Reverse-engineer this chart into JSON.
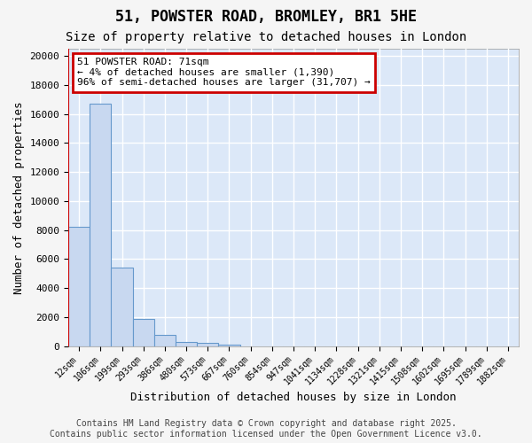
{
  "title": "51, POWSTER ROAD, BROMLEY, BR1 5HE",
  "subtitle": "Size of property relative to detached houses in London",
  "xlabel": "Distribution of detached houses by size in London",
  "ylabel": "Number of detached properties",
  "bar_color": "#c8d8f0",
  "bar_edge_color": "#6699cc",
  "background_color": "#dce8f8",
  "fig_background_color": "#f5f5f5",
  "grid_color": "#ffffff",
  "categories": [
    "12sqm",
    "106sqm",
    "199sqm",
    "293sqm",
    "386sqm",
    "480sqm",
    "573sqm",
    "667sqm",
    "760sqm",
    "854sqm",
    "947sqm",
    "1041sqm",
    "1134sqm",
    "1228sqm",
    "1321sqm",
    "1415sqm",
    "1508sqm",
    "1602sqm",
    "1695sqm",
    "1789sqm",
    "1882sqm"
  ],
  "values": [
    8200,
    16700,
    5400,
    1850,
    750,
    300,
    200,
    100,
    0,
    0,
    0,
    0,
    0,
    0,
    0,
    0,
    0,
    0,
    0,
    0,
    0
  ],
  "ylim": [
    0,
    20500
  ],
  "yticks": [
    0,
    2000,
    4000,
    6000,
    8000,
    10000,
    12000,
    14000,
    16000,
    18000,
    20000
  ],
  "annotation_text": "51 POWSTER ROAD: 71sqm\n← 4% of detached houses are smaller (1,390)\n96% of semi-detached houses are larger (31,707) →",
  "annotation_box_color": "#cc0000",
  "footer": "Contains HM Land Registry data © Crown copyright and database right 2025.\nContains public sector information licensed under the Open Government Licence v3.0.",
  "title_fontsize": 12,
  "subtitle_fontsize": 10,
  "annotation_fontsize": 8,
  "footer_fontsize": 7,
  "ylabel_fontsize": 9,
  "xlabel_fontsize": 9
}
